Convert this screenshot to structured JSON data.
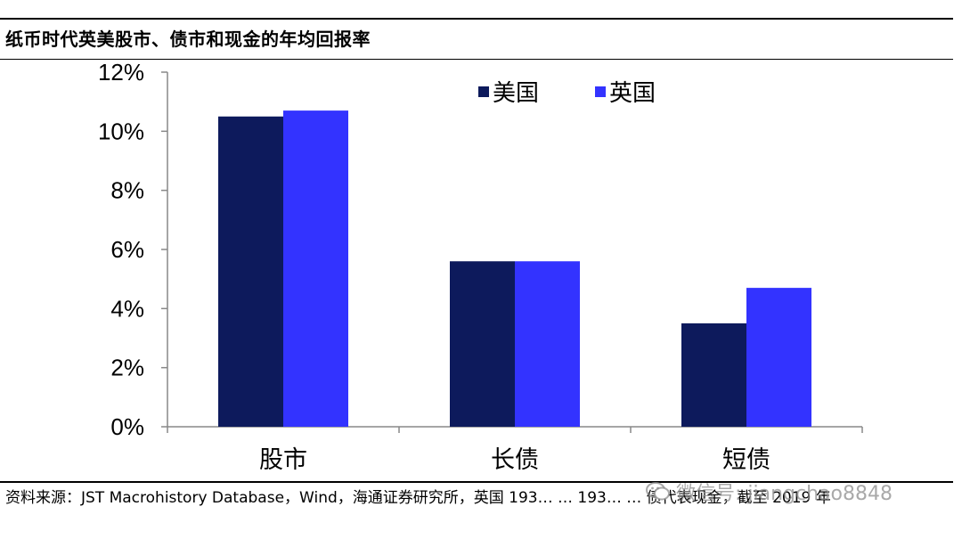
{
  "title": "纸币时代英美股市、债市和现金的年均回报率",
  "colors": {
    "us": "#0d1a5c",
    "uk": "#3333ff",
    "axis": "#888888"
  },
  "chart_data": {
    "type": "bar",
    "categories": [
      "股市",
      "长债",
      "短债"
    ],
    "series": [
      {
        "name": "美国",
        "values": [
          10.5,
          5.6,
          3.5
        ]
      },
      {
        "name": "英国",
        "values": [
          10.7,
          5.6,
          4.7
        ]
      }
    ],
    "ylim": [
      0,
      12
    ],
    "yticks": [
      0,
      2,
      4,
      6,
      8,
      10,
      12
    ],
    "ytick_labels": [
      "0%",
      "2%",
      "4%",
      "6%",
      "8%",
      "10%",
      "12%"
    ],
    "legend_position": "top-right",
    "grid": false
  },
  "source_text": "资料来源：JST Macrohistory Database，Wind，海通证券研究所，英国 193… … 193… … 债代表现金，截至 2019 年",
  "watermark": {
    "icon": "wechat-icon",
    "text": "微信号: jiangchao8848"
  }
}
